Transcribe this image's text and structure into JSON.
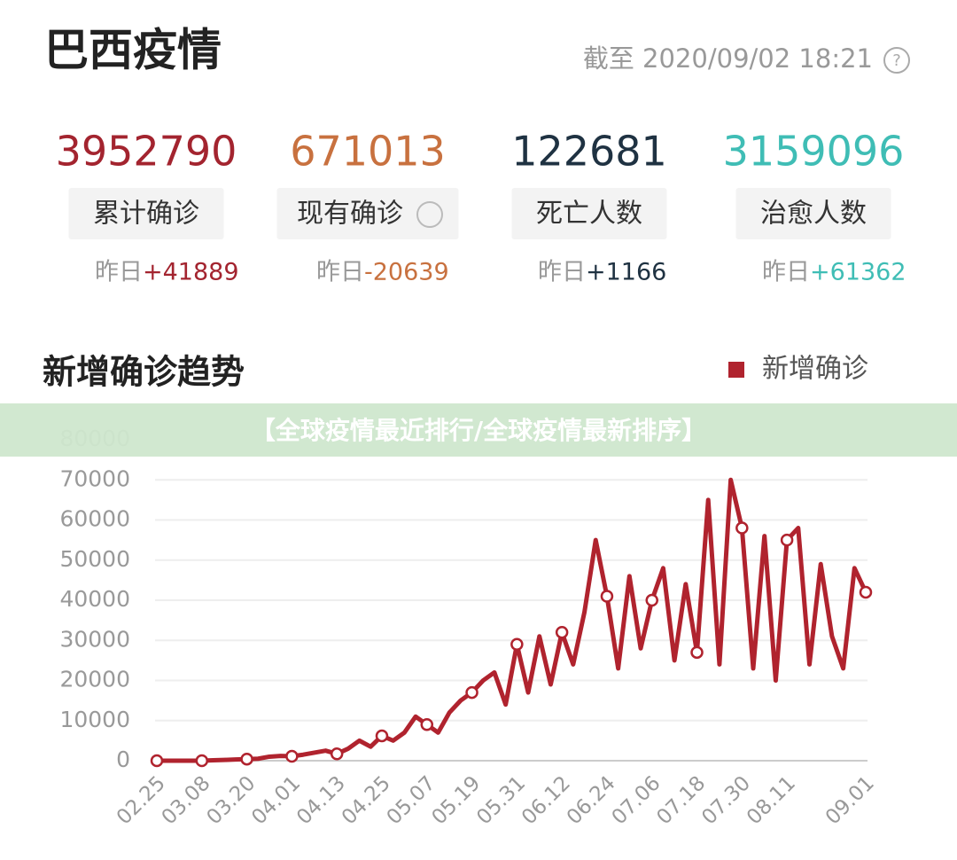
{
  "header": {
    "title": "巴西疫情",
    "as_of": "截至 2020/09/02 18:21"
  },
  "stats": [
    {
      "value": 3952790,
      "label": "累计确诊",
      "yesterday": "昨日",
      "delta": "+41889",
      "color": "#a3242f"
    },
    {
      "value": 671013,
      "label": "现有确诊",
      "yesterday": "昨日",
      "delta": "-20639",
      "color": "#c8713f"
    },
    {
      "value": 122681,
      "label": "死亡人数",
      "yesterday": "昨日",
      "delta": "+1166",
      "color": "#1f3242"
    },
    {
      "value": 3159096,
      "label": "治愈人数",
      "yesterday": "昨日",
      "delta": "+61362",
      "color": "#3fbdb5"
    }
  ],
  "banner": "【全球疫情最近排行/全球疫情最新排序】",
  "chart_data": {
    "type": "line",
    "title": "新增确诊趋势",
    "categories": [
      "02.25",
      null,
      null,
      null,
      "03.08",
      null,
      null,
      null,
      "03.20",
      null,
      null,
      null,
      "04.01",
      null,
      null,
      null,
      "04.13",
      null,
      null,
      null,
      "04.25",
      null,
      null,
      null,
      "05.07",
      null,
      null,
      null,
      "05.19",
      null,
      null,
      null,
      "05.31",
      null,
      null,
      null,
      "06.12",
      null,
      null,
      null,
      "06.24",
      null,
      null,
      null,
      "07.06",
      null,
      null,
      null,
      "07.18",
      null,
      null,
      null,
      "07.30",
      null,
      null,
      null,
      "08.11",
      null,
      null,
      null,
      null,
      null,
      null,
      "09.01"
    ],
    "series": [
      {
        "name": "新增确诊",
        "color": "#b0232e",
        "values": [
          0,
          0,
          0,
          0,
          0,
          100,
          200,
          300,
          400,
          500,
          1000,
          1200,
          1100,
          1500,
          2000,
          2500,
          1700,
          3000,
          5000,
          3500,
          6200,
          5000,
          7000,
          11000,
          9000,
          7000,
          12000,
          15000,
          17000,
          20000,
          22000,
          14000,
          29000,
          17000,
          31000,
          19000,
          32000,
          24000,
          37000,
          55000,
          41000,
          23000,
          46000,
          28000,
          40000,
          48000,
          25000,
          44000,
          27000,
          65000,
          24000,
          70000,
          58000,
          23000,
          56000,
          20000,
          55000,
          58000,
          24000,
          49000,
          31000,
          23000,
          48000,
          42000
        ]
      }
    ],
    "ylim": [
      0,
      80000
    ],
    "yticks": [
      0,
      10000,
      20000,
      30000,
      40000,
      50000,
      60000,
      70000,
      80000
    ],
    "grid": true
  }
}
